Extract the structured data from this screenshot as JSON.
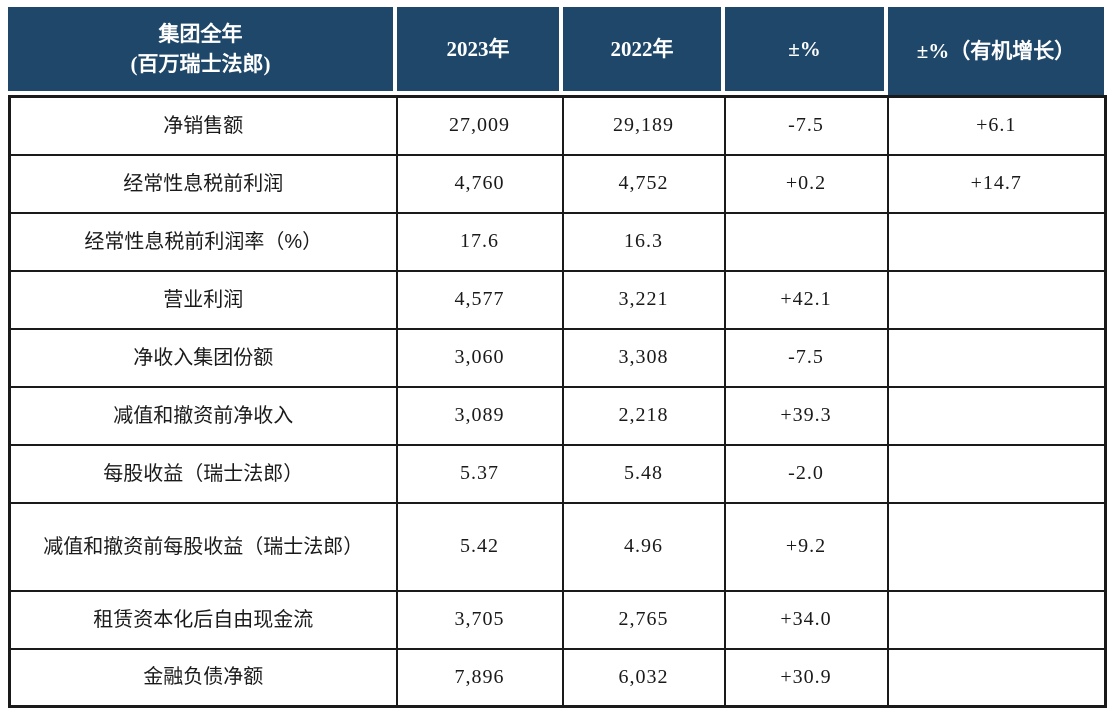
{
  "colors": {
    "header_bg": "#1f4769",
    "header_text": "#ffffff",
    "grid_border": "#1a1a1a",
    "body_text": "#1a1a1a",
    "background": "#ffffff"
  },
  "header": {
    "col1_line1": "集团全年",
    "col1_line2": "(百万瑞士法郎)",
    "col2": "2023年",
    "col3": "2022年",
    "col4": "±%",
    "col5": "±%（有机增长）"
  },
  "chart_data": {
    "type": "table",
    "title": "集团全年 (百万瑞士法郎)",
    "columns": [
      "集团全年 (百万瑞士法郎)",
      "2023年",
      "2022年",
      "±%",
      "±%（有机增长）"
    ],
    "rows": [
      [
        "净销售额",
        "27,009",
        "29,189",
        "-7.5",
        "+6.1"
      ],
      [
        "经常性息税前利润",
        "4,760",
        "4,752",
        "+0.2",
        "+14.7"
      ],
      [
        "经常性息税前利润率（%）",
        "17.6",
        "16.3",
        "",
        ""
      ],
      [
        "营业利润",
        "4,577",
        "3,221",
        "+42.1",
        ""
      ],
      [
        "净收入集团份额",
        "3,060",
        "3,308",
        "-7.5",
        ""
      ],
      [
        "减值和撤资前净收入",
        "3,089",
        "2,218",
        "+39.3",
        ""
      ],
      [
        "每股收益（瑞士法郎）",
        "5.37",
        "5.48",
        "-2.0",
        ""
      ],
      [
        "减值和撤资前每股收益（瑞士法郎）",
        "5.42",
        "4.96",
        "+9.2",
        ""
      ],
      [
        "租赁资本化后自由现金流",
        "3,705",
        "2,765",
        "+34.0",
        ""
      ],
      [
        "金融负债净额",
        "7,896",
        "6,032",
        "+30.9",
        ""
      ]
    ],
    "layout": {
      "grid": true,
      "header_style": "dark-navy, white bold text, white gaps between header cells",
      "tall_row_index": 7
    }
  }
}
